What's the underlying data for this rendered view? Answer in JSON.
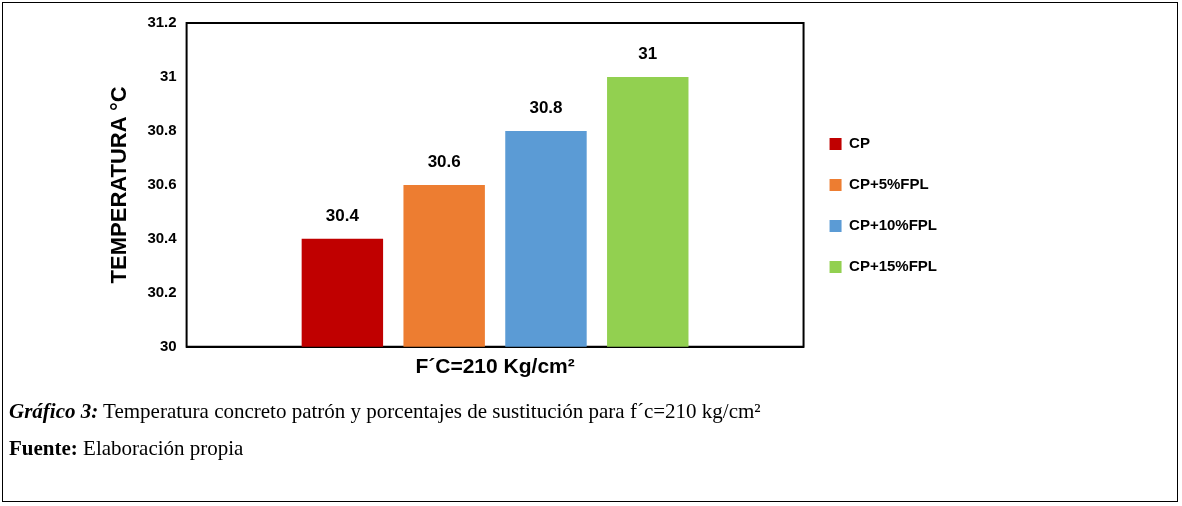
{
  "chart_data": {
    "type": "bar",
    "ylabel": "TEMPERATURA °C",
    "categories": [
      "F´C=210 Kg/cm²"
    ],
    "series": [
      {
        "name": "CP",
        "color": "#c00000",
        "values": [
          30.4
        ]
      },
      {
        "name": "CP+5%FPL",
        "color": "#ed7d31",
        "values": [
          30.6
        ]
      },
      {
        "name": "CP+10%FPL",
        "color": "#5b9bd5",
        "values": [
          30.8
        ]
      },
      {
        "name": "CP+15%FPL",
        "color": "#92d050",
        "values": [
          31
        ]
      }
    ],
    "ylim": [
      30,
      31.2
    ],
    "yticks": [
      30,
      30.2,
      30.4,
      30.6,
      30.8,
      31,
      31.2
    ],
    "grid": false,
    "legend": "right",
    "data_labels": true,
    "annotations": [
      "Gráfico 3: Temperatura concreto patrón y porcentajes de sustitución para f´c=210 kg/cm²",
      "Fuente: Elaboración propia"
    ]
  }
}
